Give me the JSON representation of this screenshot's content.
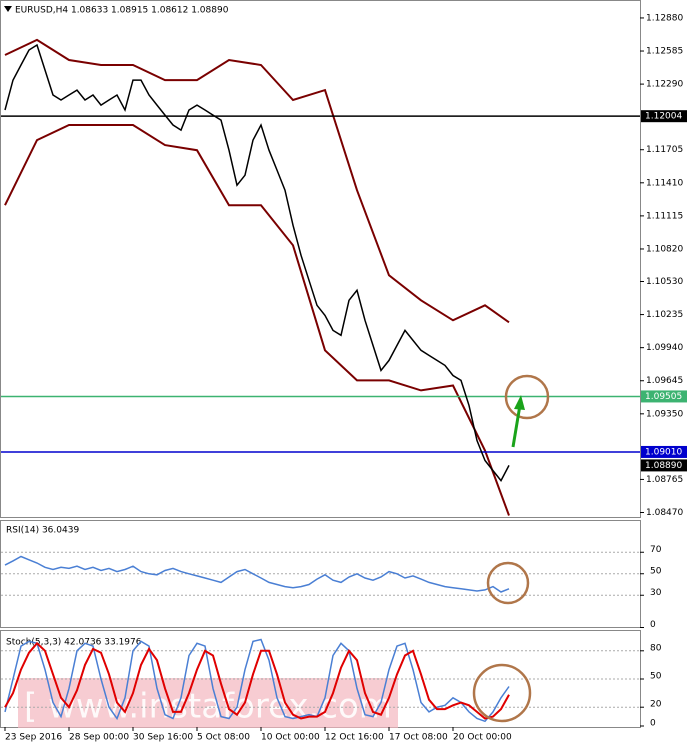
{
  "chart_data": [
    {
      "type": "line",
      "title": "EURUSD,H4 1.08633 1.08915 1.08612 1.08890",
      "ylim": [
        1.0843,
        1.1304
      ],
      "yticks": [
        {
          "value": 1.1288,
          "label": "1.12880"
        },
        {
          "value": 1.12585,
          "label": "1.12585"
        },
        {
          "value": 1.1229,
          "label": "1.12290"
        },
        {
          "value": 1.11705,
          "label": "1.11705"
        },
        {
          "value": 1.1141,
          "label": "1.11410"
        },
        {
          "value": 1.11115,
          "label": "1.11115"
        },
        {
          "value": 1.1082,
          "label": "1.10820"
        },
        {
          "value": 1.1053,
          "label": "1.10530"
        },
        {
          "value": 1.10235,
          "label": "1.10235"
        },
        {
          "value": 1.0994,
          "label": "1.09940"
        },
        {
          "value": 1.09645,
          "label": "1.09645"
        },
        {
          "value": 1.0935,
          "label": "1.09350"
        },
        {
          "value": 1.08765,
          "label": "1.08765"
        },
        {
          "value": 1.0847,
          "label": "1.08470"
        }
      ],
      "xticks": [
        {
          "value": 0,
          "label": "23 Sep 2016"
        },
        {
          "value": 8,
          "label": "28 Sep 00:00"
        },
        {
          "value": 16,
          "label": "30 Sep 16:00"
        },
        {
          "value": 24,
          "label": "5 Oct 08:00"
        },
        {
          "value": 32,
          "label": "10 Oct 00:00"
        },
        {
          "value": 40,
          "label": "12 Oct 16:00"
        },
        {
          "value": 48,
          "label": "17 Oct 08:00"
        },
        {
          "value": 56,
          "label": "20 Oct 00:00"
        }
      ],
      "series": [
        {
          "color": "#000000",
          "values": [
            1.12059,
            1.12326,
            1.1246,
            1.12594,
            1.12639,
            1.12416,
            1.12193,
            1.12148,
            1.12193,
            1.12237,
            1.12148,
            1.12193,
            1.12103,
            1.12148,
            1.12193,
            1.12059,
            1.12326,
            1.12326,
            1.12193,
            1.12103,
            1.12014,
            1.11925,
            1.1188,
            1.12059,
            1.12103,
            1.12059,
            1.12014,
            1.11969,
            1.11701,
            1.11389,
            1.11478,
            1.11791,
            1.11925,
            1.11701,
            1.11523,
            1.11344,
            1.11032,
            1.10764,
            1.10541,
            1.10318,
            1.10228,
            1.10094,
            1.1005,
            1.10362,
            1.10451,
            1.10184,
            1.0996,
            1.09737,
            1.09826,
            1.0996,
            1.10094,
            1.10005,
            1.09916,
            1.09871,
            1.09826,
            1.09782,
            1.09692,
            1.09648,
            1.09425,
            1.09112,
            1.08934,
            1.08844,
            1.08755,
            1.0889
          ]
        }
      ],
      "bands": {
        "color": "#7a0000",
        "x": [
          0,
          4,
          8,
          12,
          16,
          20,
          24,
          28,
          32,
          36,
          40,
          44,
          48,
          52,
          56,
          60,
          63
        ],
        "upper": [
          1.1255,
          1.12684,
          1.12505,
          1.1246,
          1.1246,
          1.12326,
          1.12326,
          1.12505,
          1.1246,
          1.12148,
          1.12237,
          1.11344,
          1.10585,
          1.10362,
          1.10184,
          1.10318,
          1.10166
        ],
        "lower": [
          1.1121,
          1.11791,
          1.11925,
          1.11925,
          1.11925,
          1.11746,
          1.11701,
          1.1121,
          1.1121,
          1.10853,
          1.09916,
          1.09648,
          1.09648,
          1.09559,
          1.09603,
          1.09023,
          1.08443
        ]
      },
      "levels": [
        {
          "value": 1.12004,
          "label": "1.12004",
          "color": "#000000"
        },
        {
          "value": 1.09505,
          "label": "1.09505",
          "color": "#3cb371"
        },
        {
          "value": 1.0901,
          "label": "1.09010",
          "color": "#0000cd"
        }
      ],
      "current": {
        "value": 1.0889,
        "label": "1.08890"
      },
      "watermark": "[  www.instaforex.com  ]"
    },
    {
      "type": "line",
      "title": "RSI(14) 36.0439",
      "ylim": [
        0,
        100
      ],
      "yticks": [
        70,
        50,
        30,
        0
      ],
      "series": [
        {
          "color": "#4a7fd4",
          "values": [
            58,
            62,
            66,
            63,
            60,
            56,
            54,
            56,
            55,
            57,
            54,
            56,
            53,
            55,
            52,
            54,
            57,
            52,
            50,
            49,
            53,
            55,
            52,
            50,
            48,
            46,
            44,
            42,
            47,
            52,
            54,
            50,
            46,
            42,
            40,
            38,
            37,
            38,
            40,
            45,
            49,
            44,
            42,
            47,
            50,
            46,
            44,
            47,
            52,
            50,
            46,
            48,
            45,
            42,
            40,
            38,
            37,
            36,
            35,
            34,
            35,
            38,
            33,
            36.0439
          ]
        }
      ]
    },
    {
      "type": "line",
      "title": "Stoch(5,3,3) 42.0736 33.1976",
      "ylim": [
        0,
        100
      ],
      "yticks": [
        80,
        50,
        20,
        0
      ],
      "series": [
        {
          "color": "#4a7fd4",
          "values": [
            15,
            50,
            85,
            90,
            88,
            60,
            25,
            10,
            40,
            80,
            88,
            85,
            50,
            20,
            8,
            30,
            80,
            90,
            85,
            40,
            12,
            8,
            30,
            75,
            88,
            85,
            40,
            10,
            8,
            20,
            60,
            90,
            92,
            70,
            30,
            10,
            8,
            10,
            12,
            10,
            30,
            75,
            88,
            80,
            40,
            12,
            10,
            25,
            60,
            85,
            88,
            60,
            25,
            15,
            20,
            22,
            30,
            25,
            15,
            8,
            5,
            15,
            30,
            42.0736
          ]
        },
        {
          "color": "#e00000",
          "values": [
            20,
            35,
            60,
            78,
            88,
            80,
            55,
            30,
            20,
            38,
            65,
            82,
            78,
            55,
            25,
            15,
            35,
            65,
            82,
            70,
            40,
            15,
            15,
            35,
            60,
            80,
            75,
            45,
            18,
            12,
            25,
            55,
            80,
            80,
            55,
            25,
            12,
            8,
            10,
            10,
            15,
            35,
            62,
            80,
            70,
            35,
            15,
            12,
            30,
            55,
            75,
            80,
            55,
            28,
            18,
            18,
            22,
            25,
            22,
            15,
            8,
            10,
            18,
            33.1976
          ]
        }
      ]
    }
  ]
}
